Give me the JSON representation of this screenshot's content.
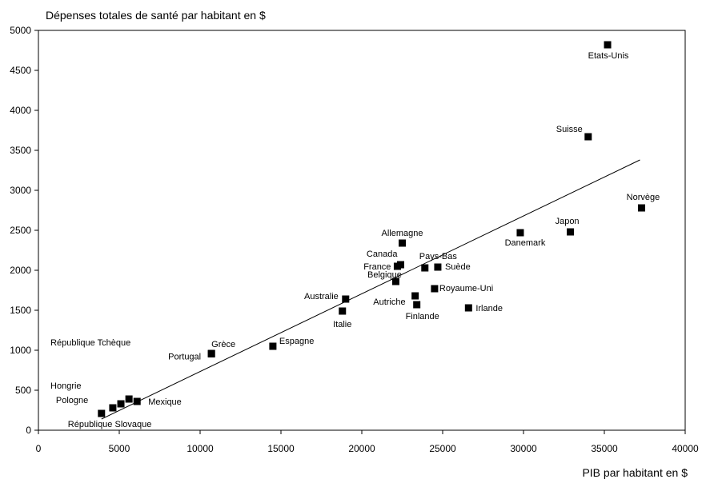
{
  "chart_data": {
    "type": "scatter",
    "ylabel": "Dépenses totales de santé par habitant en $",
    "xlabel": "PIB par habitant en $",
    "xlim": [
      0,
      40000
    ],
    "ylim": [
      0,
      5000
    ],
    "x_ticks": [
      0,
      5000,
      10000,
      15000,
      20000,
      25000,
      30000,
      35000,
      40000
    ],
    "y_ticks": [
      0,
      500,
      1000,
      1500,
      2000,
      2500,
      3000,
      3500,
      4000,
      4500,
      5000
    ],
    "grid": false,
    "points": [
      {
        "label": "Etats-Unis",
        "x": 35200,
        "y": 4820
      },
      {
        "label": "Suisse",
        "x": 34000,
        "y": 3670
      },
      {
        "label": "Norvège",
        "x": 37300,
        "y": 2780
      },
      {
        "label": "Japon",
        "x": 32900,
        "y": 2480
      },
      {
        "label": "Danemark",
        "x": 29800,
        "y": 2470
      },
      {
        "label": "Allemagne",
        "x": 22500,
        "y": 2340
      },
      {
        "label": "Canada",
        "x": 22400,
        "y": 2070
      },
      {
        "label": "France",
        "x": 22200,
        "y": 2050
      },
      {
        "label": "Pays-Bas",
        "x": 23900,
        "y": 2030
      },
      {
        "label": "Suède",
        "x": 24700,
        "y": 2040
      },
      {
        "label": "Belgique",
        "x": 22100,
        "y": 1860
      },
      {
        "label": "Royaume-Uni",
        "x": 24500,
        "y": 1770
      },
      {
        "label": "Autriche",
        "x": 23300,
        "y": 1680
      },
      {
        "label": "Finlande",
        "x": 23400,
        "y": 1570
      },
      {
        "label": "Irlande",
        "x": 26600,
        "y": 1530
      },
      {
        "label": "Australie",
        "x": 19000,
        "y": 1640
      },
      {
        "label": "Italie",
        "x": 18800,
        "y": 1490
      },
      {
        "label": "Espagne",
        "x": 14500,
        "y": 1050
      },
      {
        "label": "Grèce",
        "x": 10700,
        "y": 960
      },
      {
        "label": "Portugal",
        "x": 10700,
        "y": 955
      },
      {
        "label": "République Tchèque",
        "x": 5600,
        "y": 390
      },
      {
        "label": "Hongrie",
        "x": 5100,
        "y": 330
      },
      {
        "label": "Pologne",
        "x": 4600,
        "y": 280
      },
      {
        "label": "Mexique",
        "x": 6100,
        "y": 360
      },
      {
        "label": "République Slovaque",
        "x": 3900,
        "y": 210
      }
    ],
    "trendline": {
      "x": [
        3900,
        37200
      ],
      "y": [
        140,
        3380
      ]
    }
  }
}
